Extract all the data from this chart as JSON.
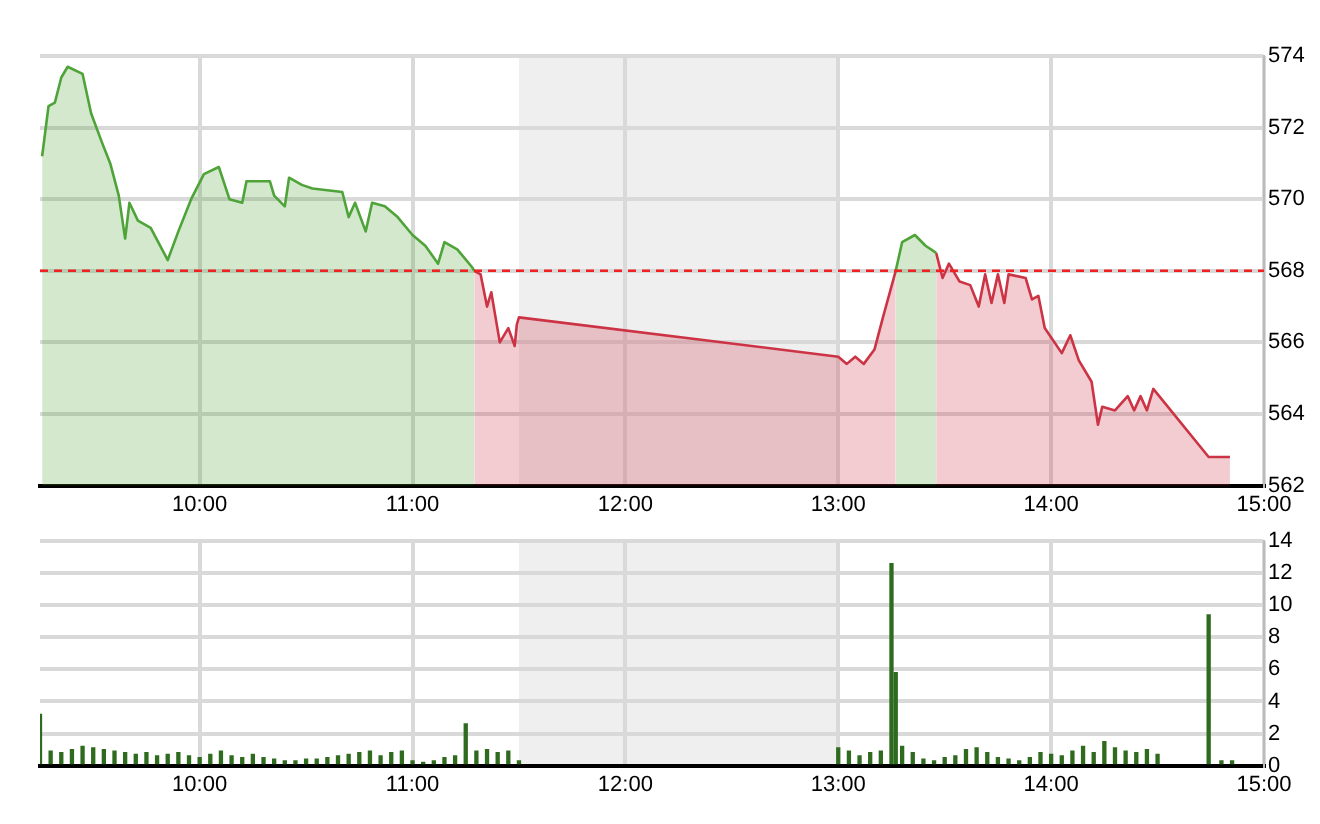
{
  "chart_data": [
    {
      "type": "area",
      "xlim": [
        9.25,
        15
      ],
      "xticks": [
        {
          "value": 10,
          "label": "10:00"
        },
        {
          "value": 11,
          "label": "11:00"
        },
        {
          "value": 12,
          "label": "12:00"
        },
        {
          "value": 13,
          "label": "13:00"
        },
        {
          "value": 14,
          "label": "14:00"
        },
        {
          "value": 15,
          "label": "15:00"
        }
      ],
      "ylim": [
        562,
        574
      ],
      "yticks": [
        562,
        564,
        566,
        568,
        570,
        572,
        574
      ],
      "grid": true,
      "legend": false,
      "ref_lines": [
        {
          "axis": "y",
          "value": 568,
          "color": "#ee2222",
          "line_style": "dashed"
        }
      ],
      "bands": [
        {
          "axis": "x",
          "from": 11.5,
          "to": 13,
          "color": "#efefef"
        }
      ],
      "series": [
        {
          "color": "#4ea339",
          "x": [
            9.26,
            9.29,
            9.32,
            9.35,
            9.38,
            9.45,
            9.49,
            9.54,
            9.58,
            9.62,
            9.65,
            9.67,
            9.71,
            9.77,
            9.85,
            9.9,
            9.96,
            10.02,
            10.09,
            10.14,
            10.2,
            10.22,
            10.33,
            10.35,
            10.4,
            10.42,
            10.48,
            10.53,
            10.67,
            10.7,
            10.73,
            10.78,
            10.81,
            10.87,
            10.93,
            11,
            11.06,
            11.12,
            11.15,
            11.21,
            11.28,
            11.29,
            12.5,
            13.27,
            13.3,
            13.36,
            13.41,
            13.46
          ],
          "values": [
            571.2,
            572.6,
            572.7,
            573.4,
            573.7,
            573.5,
            572.4,
            571.6,
            571,
            570.1,
            568.9,
            569.9,
            569.4,
            569.2,
            568.3,
            569.1,
            570,
            570.7,
            570.9,
            570,
            569.9,
            570.5,
            570.5,
            570.1,
            569.8,
            570.6,
            570.4,
            570.3,
            570.2,
            569.5,
            569.9,
            569.1,
            569.9,
            569.8,
            569.5,
            569,
            568.7,
            568.2,
            568.8,
            568.6,
            568.1,
            568,
            null,
            568,
            568.8,
            569,
            568.7,
            568.5
          ]
        },
        {
          "color": "#cc3344",
          "x": [
            11.29,
            11.32,
            11.35,
            11.37,
            11.41,
            11.45,
            11.48,
            11.49,
            11.5,
            13,
            13.04,
            13.08,
            13.12,
            13.17,
            13.21,
            13.27,
            13.37,
            13.46,
            13.49,
            13.52,
            13.57,
            13.62,
            13.66,
            13.69,
            13.72,
            13.75,
            13.78,
            13.8,
            13.88,
            13.91,
            13.94,
            13.97,
            14.05,
            14.09,
            14.13,
            14.19,
            14.22,
            14.24,
            14.3,
            14.36,
            14.39,
            14.42,
            14.45,
            14.48,
            14.74,
            14.84
          ],
          "values": [
            568,
            567.9,
            567,
            567.4,
            566,
            566.4,
            565.9,
            566.5,
            566.7,
            565.6,
            565.4,
            565.6,
            565.4,
            565.8,
            566.7,
            568,
            null,
            568.5,
            567.8,
            568.2,
            567.7,
            567.6,
            567,
            567.9,
            567.1,
            567.9,
            567.1,
            567.9,
            567.8,
            567.2,
            567.3,
            566.4,
            565.7,
            566.2,
            565.5,
            564.9,
            563.7,
            564.2,
            564.1,
            564.5,
            564.1,
            564.5,
            564.1,
            564.7,
            562.8,
            562.8
          ]
        }
      ]
    },
    {
      "type": "bar",
      "xlim": [
        9.25,
        15
      ],
      "xticks": [
        {
          "value": 10,
          "label": "10:00"
        },
        {
          "value": 11,
          "label": "11:00"
        },
        {
          "value": 12,
          "label": "12:00"
        },
        {
          "value": 13,
          "label": "13:00"
        },
        {
          "value": 14,
          "label": "14:00"
        },
        {
          "value": 15,
          "label": "15:00"
        }
      ],
      "ylim": [
        0,
        14
      ],
      "yticks": [
        0,
        2,
        4,
        6,
        8,
        10,
        12,
        14
      ],
      "grid": true,
      "legend": false,
      "bands": [
        {
          "axis": "x",
          "from": 11.5,
          "to": 13,
          "color": "#efefef"
        }
      ],
      "color": "#2e6b1f",
      "x": [
        9.25,
        9.3,
        9.35,
        9.4,
        9.45,
        9.5,
        9.55,
        9.6,
        9.65,
        9.7,
        9.75,
        9.8,
        9.85,
        9.9,
        9.95,
        10,
        10.05,
        10.1,
        10.15,
        10.2,
        10.25,
        10.3,
        10.35,
        10.4,
        10.45,
        10.5,
        10.55,
        10.6,
        10.65,
        10.7,
        10.75,
        10.8,
        10.85,
        10.9,
        10.95,
        11,
        11.05,
        11.1,
        11.15,
        11.2,
        11.25,
        11.3,
        11.35,
        11.4,
        11.45,
        11.5,
        13,
        13.05,
        13.1,
        13.15,
        13.2,
        13.25,
        13.27,
        13.3,
        13.35,
        13.4,
        13.45,
        13.5,
        13.55,
        13.6,
        13.65,
        13.7,
        13.75,
        13.8,
        13.85,
        13.9,
        13.95,
        14,
        14.05,
        14.1,
        14.15,
        14.2,
        14.25,
        14.3,
        14.35,
        14.4,
        14.45,
        14.5,
        14.74,
        14.8,
        14.85
      ],
      "values": [
        3.2,
        0.9,
        0.8,
        1,
        1.2,
        1.1,
        1,
        0.9,
        0.8,
        0.7,
        0.8,
        0.6,
        0.7,
        0.8,
        0.6,
        0.5,
        0.7,
        0.9,
        0.6,
        0.5,
        0.7,
        0.5,
        0.4,
        0.3,
        0.3,
        0.4,
        0.4,
        0.5,
        0.6,
        0.7,
        0.8,
        0.9,
        0.6,
        0.8,
        0.9,
        0.3,
        0.2,
        0.3,
        0.5,
        0.6,
        2.6,
        0.9,
        1,
        0.8,
        0.9,
        0.3,
        1.1,
        0.9,
        0.6,
        0.8,
        0.9,
        12.6,
        5.8,
        1.2,
        0.8,
        0.4,
        0.3,
        0.5,
        0.6,
        1,
        1.1,
        0.8,
        0.5,
        0.4,
        0.3,
        0.5,
        0.8,
        0.7,
        0.6,
        0.9,
        1.2,
        0.8,
        1.5,
        1.1,
        0.9,
        0.8,
        1,
        0.7,
        9.4,
        0.3,
        0.3
      ]
    }
  ]
}
